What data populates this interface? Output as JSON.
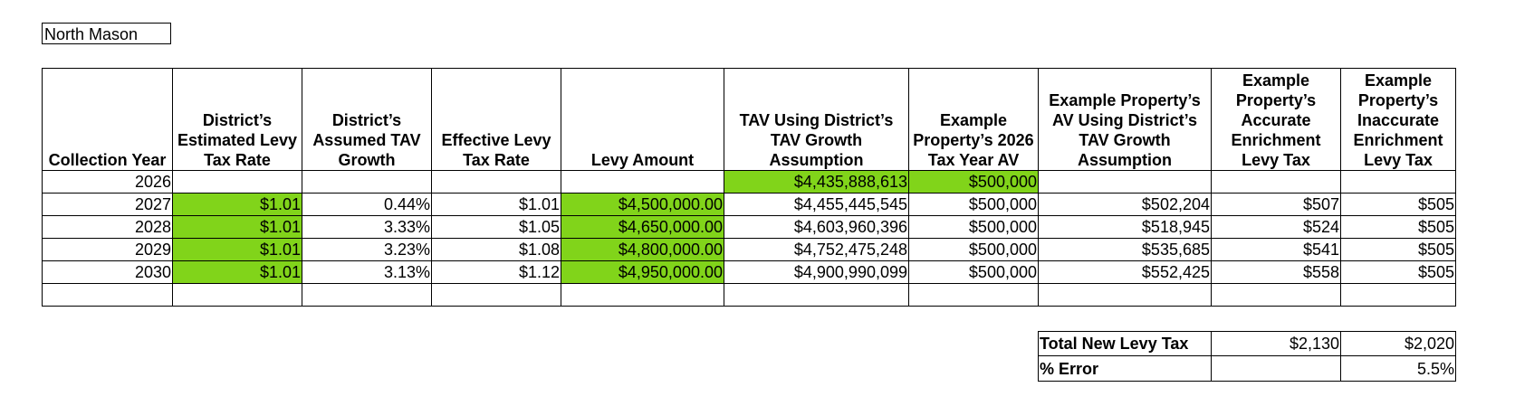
{
  "district": "North Mason",
  "colors": {
    "highlight": "#81d41a"
  },
  "headers": [
    "Collection Year",
    "District’s Estimated Levy Tax Rate",
    "District’s Assumed TAV Growth",
    "Effective Levy Tax Rate",
    "Levy Amount",
    "TAV Using District’s TAV Growth Assumption",
    "Example Property’s 2026 Tax Year AV",
    "Example Property’s AV Using District’s TAV Growth Assumption",
    "Example Property’s Accurate Enrichment Levy Tax",
    "Example Property’s Inaccurate Enrichment Levy Tax"
  ],
  "rows": [
    [
      "2026",
      "",
      "",
      "",
      "",
      "$4,435,888,613",
      "$500,000",
      "",
      "",
      ""
    ],
    [
      "2027",
      "$1.01",
      "0.44%",
      "$1.01",
      "$4,500,000.00",
      "$4,455,445,545",
      "$500,000",
      "$502,204",
      "$507",
      "$505"
    ],
    [
      "2028",
      "$1.01",
      "3.33%",
      "$1.05",
      "$4,650,000.00",
      "$4,603,960,396",
      "$500,000",
      "$518,945",
      "$524",
      "$505"
    ],
    [
      "2029",
      "$1.01",
      "3.23%",
      "$1.08",
      "$4,800,000.00",
      "$4,752,475,248",
      "$500,000",
      "$535,685",
      "$541",
      "$505"
    ],
    [
      "2030",
      "$1.01",
      "3.13%",
      "$1.12",
      "$4,950,000.00",
      "$4,900,990,099",
      "$500,000",
      "$552,425",
      "$558",
      "$505"
    ],
    [
      "",
      "",
      "",
      "",
      "",
      "",
      "",
      "",
      "",
      ""
    ]
  ],
  "totals": [
    [
      "Total New Levy Tax",
      "$2,130",
      "$2,020"
    ],
    [
      "% Error",
      "",
      "5.5%"
    ]
  ]
}
